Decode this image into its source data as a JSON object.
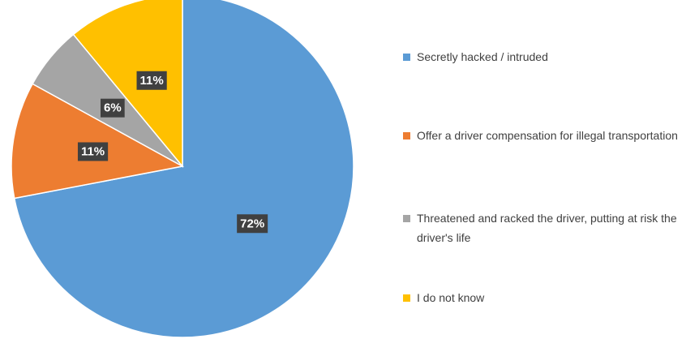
{
  "chart_data": {
    "type": "pie",
    "categories": [
      "Secretly hacked / intruded",
      "Offer a driver compensation for illegal transportation",
      "Threatened and racked the driver, putting at risk the driver's life",
      "I do not know"
    ],
    "values": [
      72,
      11,
      6,
      11
    ],
    "value_labels": [
      "72%",
      "11%",
      "6%",
      "11%"
    ],
    "colors": [
      "#5b9bd5",
      "#ed7d31",
      "#a5a5a5",
      "#ffc000"
    ],
    "legend": "right"
  }
}
